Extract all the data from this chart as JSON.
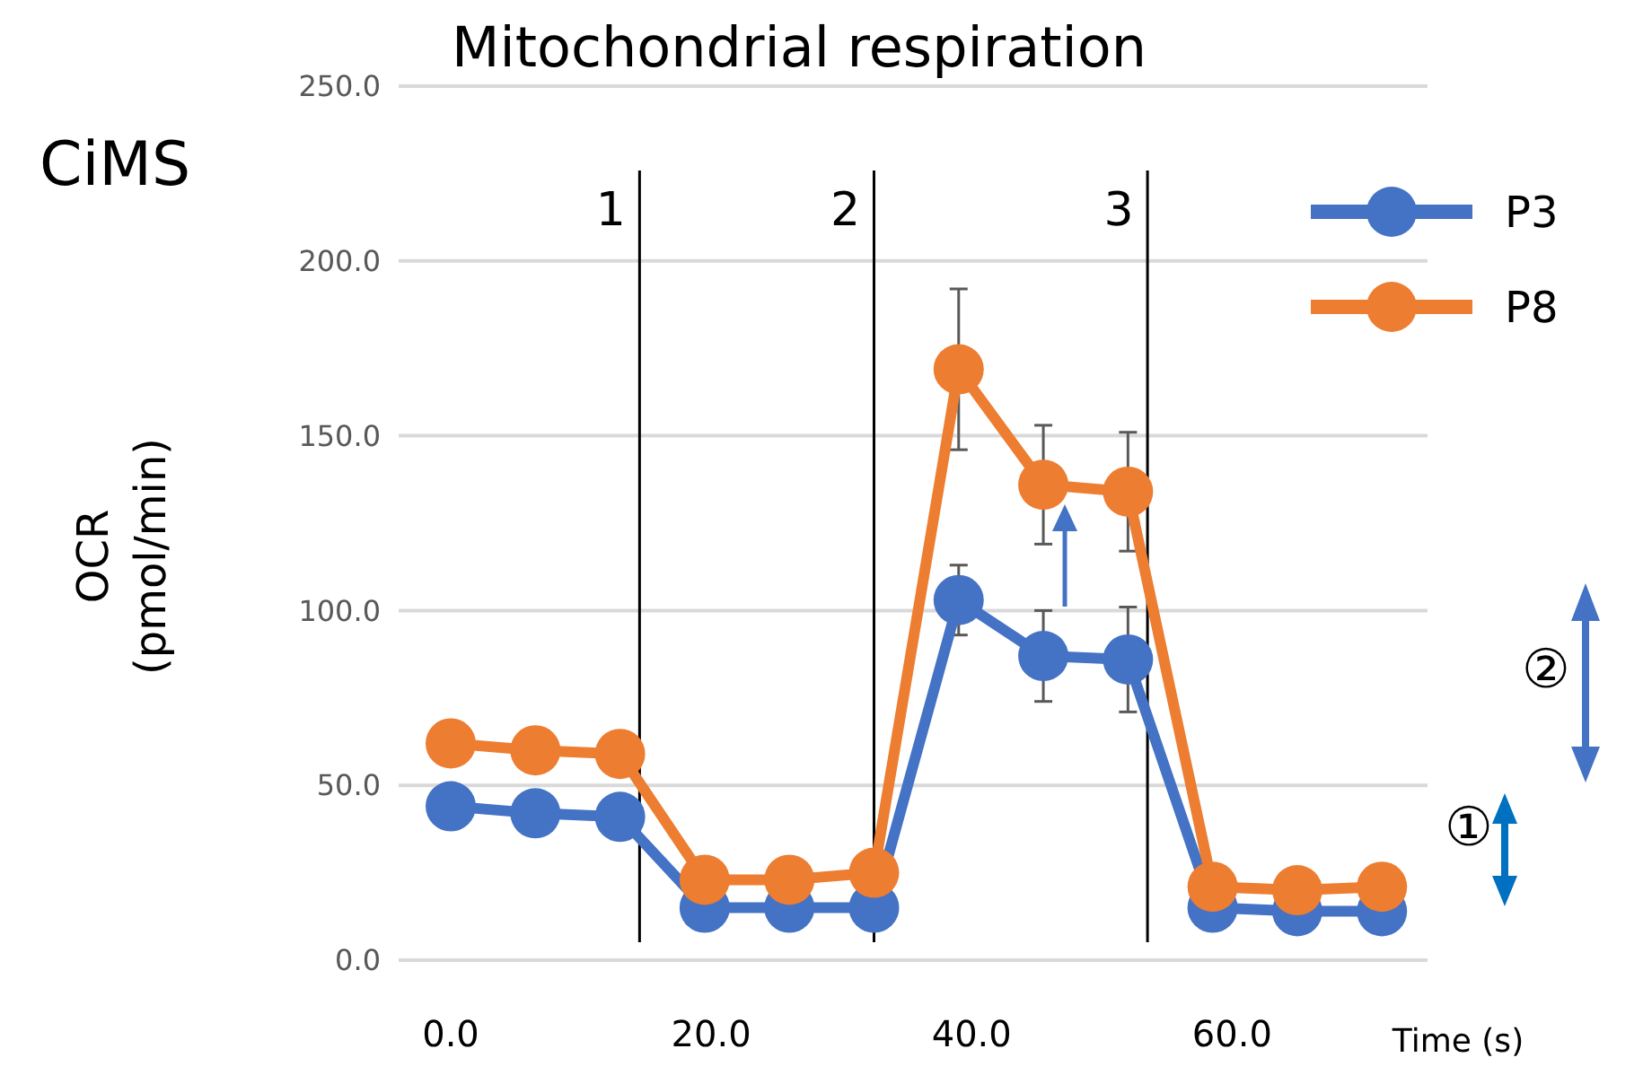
{
  "chart_data": {
    "type": "line",
    "title": "Mitochondrial respiration",
    "xlabel": "Time (s)",
    "ylabel": "OCR\n(pmol/min)",
    "x": [
      0,
      6.5,
      13,
      19.5,
      26,
      32.5,
      39,
      45.5,
      52,
      58.5,
      65,
      71.5
    ],
    "xlim": [
      -4,
      75
    ],
    "xticks": [
      {
        "value": 0,
        "label": "0.0"
      },
      {
        "value": 20,
        "label": "20.0"
      },
      {
        "value": 40,
        "label": "40.0"
      },
      {
        "value": 60,
        "label": "60.0"
      }
    ],
    "series": [
      {
        "name": "P3",
        "color": "#4472c4",
        "values": [
          44,
          42,
          41,
          15,
          15,
          15,
          103,
          87,
          86,
          15,
          14,
          14
        ],
        "errors": [
          null,
          null,
          null,
          null,
          null,
          null,
          10,
          13,
          15,
          null,
          null,
          null
        ]
      },
      {
        "name": "P8",
        "color": "#ed7d31",
        "values": [
          62,
          60,
          59,
          23,
          23,
          25,
          169,
          136,
          134,
          21,
          20,
          21
        ],
        "errors": [
          null,
          null,
          null,
          null,
          null,
          null,
          23,
          17,
          17,
          null,
          null,
          null
        ]
      }
    ],
    "ylim": [
      0,
      250
    ],
    "yticks": [
      {
        "value": 0,
        "label": "0.0"
      },
      {
        "value": 50,
        "label": "50.0"
      },
      {
        "value": 100,
        "label": "100.0"
      },
      {
        "value": 150,
        "label": "150.0"
      },
      {
        "value": 200,
        "label": "200.0"
      },
      {
        "value": 250,
        "label": "250.0"
      }
    ],
    "grid": "y",
    "legend": "top right",
    "marker": "circle",
    "line_style": "solid",
    "ref_lines": [
      {
        "axis": "x",
        "value": 14.5,
        "color": "#000000"
      },
      {
        "axis": "x",
        "value": 32.5,
        "color": "#000000"
      },
      {
        "axis": "x",
        "value": 53.5,
        "color": "#000000"
      }
    ],
    "annotations": [
      "CiMS",
      "①",
      "②",
      {
        "text": "1",
        "x": 14.5,
        "y": 215
      },
      {
        "text": "2",
        "x": 32.5,
        "y": 215
      },
      {
        "text": "3",
        "x": 53.5,
        "y": 215
      }
    ]
  }
}
